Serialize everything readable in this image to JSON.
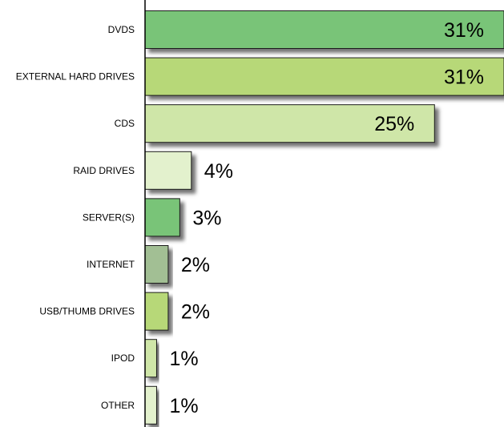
{
  "chart_data": {
    "type": "bar",
    "orientation": "horizontal",
    "categories": [
      "DVDS",
      "EXTERNAL HARD DRIVES",
      "CDS",
      "RAID DRIVES",
      "SERVER(S)",
      "INTERNET",
      "USB/THUMB DRIVES",
      "IPOD",
      "OTHER"
    ],
    "values": [
      31,
      31,
      25,
      4,
      3,
      2,
      2,
      1,
      1
    ],
    "value_labels": [
      "31%",
      "31%",
      "25%",
      "4%",
      "3%",
      "2%",
      "2%",
      "1%",
      "1%"
    ],
    "bar_colors": [
      "#79c478",
      "#b7d878",
      "#cfe6a8",
      "#e3f1cd",
      "#79c478",
      "#a2bf94",
      "#b7d878",
      "#cfe6a8",
      "#e3f1cd"
    ],
    "xlim": [
      0,
      31
    ],
    "title": "",
    "xlabel": "",
    "ylabel": "",
    "grid": false,
    "legend": "none"
  }
}
